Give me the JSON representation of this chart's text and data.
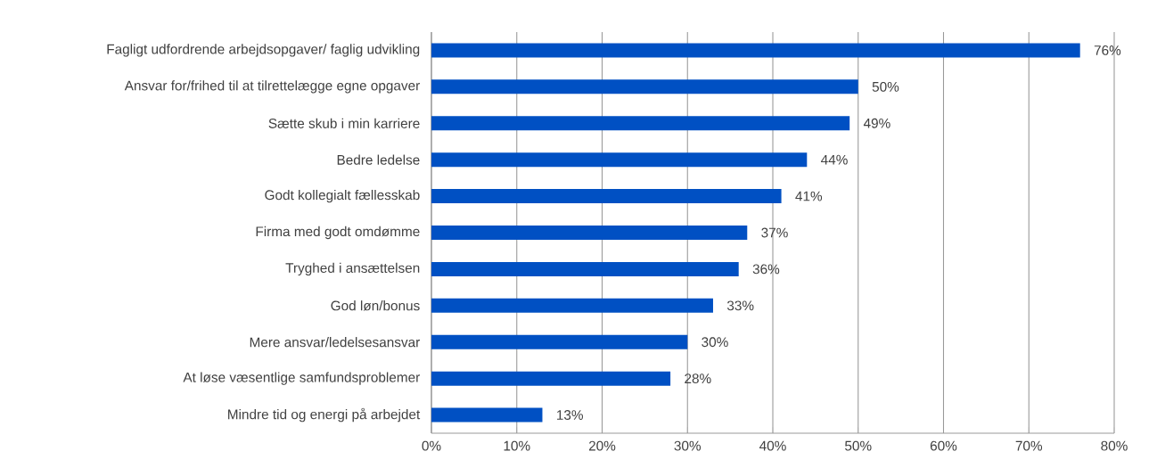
{
  "chart_data": {
    "type": "bar",
    "orientation": "horizontal",
    "categories": [
      "Fagligt udfordrende arbejdsopgaver/ faglig udvikling",
      "Ansvar for/frihed til at tilrettelægge egne opgaver",
      "Sætte skub i min karriere",
      "Bedre ledelse",
      "Godt kollegialt fællesskab",
      "Firma med godt omdømme",
      "Tryghed i ansættelsen",
      "God løn/bonus",
      "Mere ansvar/ledelsesansvar",
      "At løse væsentlige samfundsproblemer",
      "Mindre tid og energi på arbejdet"
    ],
    "values": [
      76,
      50,
      49,
      44,
      41,
      37,
      36,
      33,
      30,
      28,
      13
    ],
    "value_labels": [
      "76%",
      "50%",
      "49%",
      "44%",
      "41%",
      "37%",
      "36%",
      "33%",
      "30%",
      "28%",
      "13%"
    ],
    "color": "#0050c3",
    "xlim": [
      0,
      80
    ],
    "xticks": [
      {
        "value": 0,
        "label": "0%"
      },
      {
        "value": 10,
        "label": "10%"
      },
      {
        "value": 20,
        "label": "20%"
      },
      {
        "value": 30,
        "label": "30%"
      },
      {
        "value": 40,
        "label": "40%"
      },
      {
        "value": 50,
        "label": "50%"
      },
      {
        "value": 60,
        "label": "60%"
      },
      {
        "value": 70,
        "label": "70%"
      },
      {
        "value": 80,
        "label": "80%"
      }
    ],
    "grid": "x"
  }
}
